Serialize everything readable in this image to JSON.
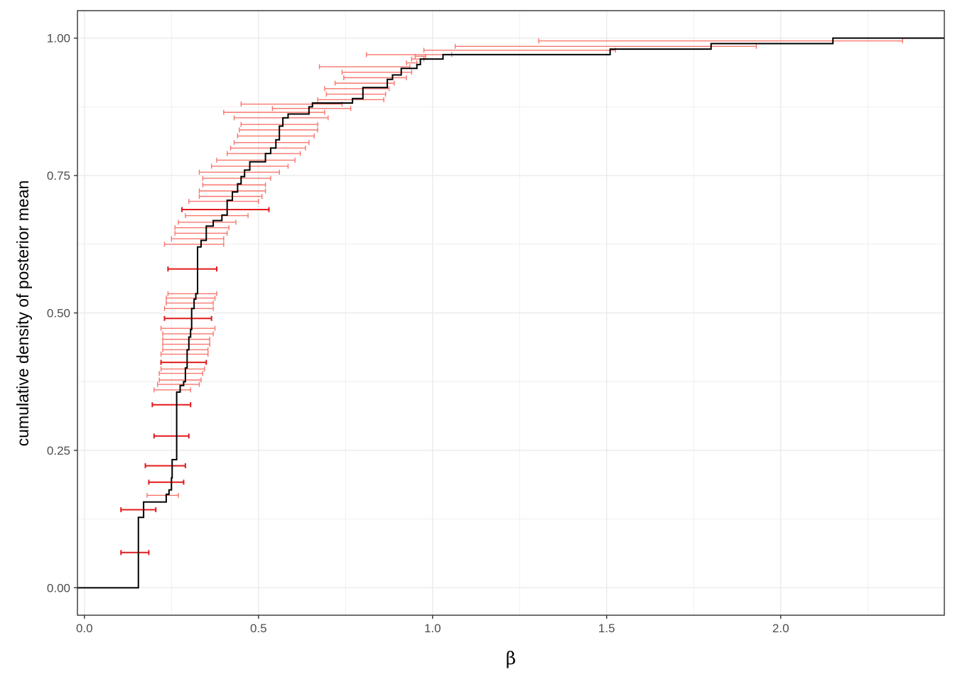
{
  "chart_data": {
    "type": "step",
    "xlabel": "β",
    "ylabel": "cumulative density of posterior mean",
    "xlim": [
      -0.02,
      2.47
    ],
    "ylim": [
      -0.05,
      1.05
    ],
    "x_ticks": [
      0.0,
      0.5,
      1.0,
      1.5,
      2.0
    ],
    "x_tick_labels": [
      "0.0",
      "0.5",
      "1.0",
      "1.5",
      "2.0"
    ],
    "y_ticks": [
      0.0,
      0.25,
      0.5,
      0.75,
      1.0
    ],
    "y_tick_labels": [
      "0.00",
      "0.25",
      "0.50",
      "0.75",
      "1.00"
    ],
    "grid": true,
    "colors": {
      "ecdf": "#000000",
      "interval_light": "#f8766d",
      "interval_dark": "#e41a1c",
      "grid": "#ebebeb",
      "panel_border": "#333333"
    },
    "ecdf_steps": [
      {
        "x": 0.155,
        "y": 0.128
      },
      {
        "x": 0.17,
        "y": 0.156
      },
      {
        "x": 0.235,
        "y": 0.17
      },
      {
        "x": 0.243,
        "y": 0.178
      },
      {
        "x": 0.25,
        "y": 0.2
      },
      {
        "x": 0.252,
        "y": 0.233
      },
      {
        "x": 0.265,
        "y": 0.356
      },
      {
        "x": 0.275,
        "y": 0.368
      },
      {
        "x": 0.285,
        "y": 0.375
      },
      {
        "x": 0.29,
        "y": 0.4
      },
      {
        "x": 0.295,
        "y": 0.433
      },
      {
        "x": 0.3,
        "y": 0.456
      },
      {
        "x": 0.305,
        "y": 0.47
      },
      {
        "x": 0.308,
        "y": 0.508
      },
      {
        "x": 0.315,
        "y": 0.525
      },
      {
        "x": 0.32,
        "y": 0.535
      },
      {
        "x": 0.325,
        "y": 0.62
      },
      {
        "x": 0.335,
        "y": 0.632
      },
      {
        "x": 0.35,
        "y": 0.658
      },
      {
        "x": 0.37,
        "y": 0.668
      },
      {
        "x": 0.395,
        "y": 0.678
      },
      {
        "x": 0.41,
        "y": 0.705
      },
      {
        "x": 0.425,
        "y": 0.72
      },
      {
        "x": 0.44,
        "y": 0.735
      },
      {
        "x": 0.45,
        "y": 0.748
      },
      {
        "x": 0.46,
        "y": 0.76
      },
      {
        "x": 0.475,
        "y": 0.775
      },
      {
        "x": 0.52,
        "y": 0.79
      },
      {
        "x": 0.535,
        "y": 0.8
      },
      {
        "x": 0.55,
        "y": 0.815
      },
      {
        "x": 0.56,
        "y": 0.84
      },
      {
        "x": 0.57,
        "y": 0.855
      },
      {
        "x": 0.585,
        "y": 0.862
      },
      {
        "x": 0.645,
        "y": 0.875
      },
      {
        "x": 0.655,
        "y": 0.882
      },
      {
        "x": 0.77,
        "y": 0.89
      },
      {
        "x": 0.8,
        "y": 0.91
      },
      {
        "x": 0.87,
        "y": 0.925
      },
      {
        "x": 0.885,
        "y": 0.933
      },
      {
        "x": 0.91,
        "y": 0.945
      },
      {
        "x": 0.955,
        "y": 0.952
      },
      {
        "x": 0.965,
        "y": 0.962
      },
      {
        "x": 1.03,
        "y": 0.97
      },
      {
        "x": 1.51,
        "y": 0.98
      },
      {
        "x": 1.8,
        "y": 0.99
      },
      {
        "x": 2.15,
        "y": 1.0
      }
    ],
    "intervals": [
      {
        "y": 0.064,
        "lo": 0.105,
        "hi": 0.185,
        "dark": true
      },
      {
        "y": 0.142,
        "lo": 0.105,
        "hi": 0.205,
        "dark": true
      },
      {
        "y": 0.168,
        "lo": 0.18,
        "hi": 0.27,
        "dark": false
      },
      {
        "y": 0.192,
        "lo": 0.185,
        "hi": 0.285,
        "dark": true
      },
      {
        "y": 0.222,
        "lo": 0.175,
        "hi": 0.29,
        "dark": true
      },
      {
        "y": 0.276,
        "lo": 0.2,
        "hi": 0.3,
        "dark": true
      },
      {
        "y": 0.333,
        "lo": 0.195,
        "hi": 0.305,
        "dark": true
      },
      {
        "y": 0.36,
        "lo": 0.2,
        "hi": 0.305,
        "dark": false
      },
      {
        "y": 0.37,
        "lo": 0.21,
        "hi": 0.33,
        "dark": false
      },
      {
        "y": 0.378,
        "lo": 0.215,
        "hi": 0.335,
        "dark": false
      },
      {
        "y": 0.39,
        "lo": 0.215,
        "hi": 0.34,
        "dark": false
      },
      {
        "y": 0.398,
        "lo": 0.22,
        "hi": 0.345,
        "dark": false
      },
      {
        "y": 0.41,
        "lo": 0.22,
        "hi": 0.35,
        "dark": true
      },
      {
        "y": 0.425,
        "lo": 0.22,
        "hi": 0.355,
        "dark": false
      },
      {
        "y": 0.433,
        "lo": 0.225,
        "hi": 0.355,
        "dark": false
      },
      {
        "y": 0.443,
        "lo": 0.225,
        "hi": 0.36,
        "dark": false
      },
      {
        "y": 0.452,
        "lo": 0.225,
        "hi": 0.36,
        "dark": false
      },
      {
        "y": 0.462,
        "lo": 0.225,
        "hi": 0.37,
        "dark": false
      },
      {
        "y": 0.472,
        "lo": 0.22,
        "hi": 0.375,
        "dark": false
      },
      {
        "y": 0.49,
        "lo": 0.23,
        "hi": 0.365,
        "dark": true
      },
      {
        "y": 0.508,
        "lo": 0.23,
        "hi": 0.37,
        "dark": false
      },
      {
        "y": 0.518,
        "lo": 0.235,
        "hi": 0.37,
        "dark": false
      },
      {
        "y": 0.527,
        "lo": 0.235,
        "hi": 0.375,
        "dark": false
      },
      {
        "y": 0.535,
        "lo": 0.24,
        "hi": 0.38,
        "dark": false
      },
      {
        "y": 0.58,
        "lo": 0.24,
        "hi": 0.38,
        "dark": true
      },
      {
        "y": 0.625,
        "lo": 0.23,
        "hi": 0.4,
        "dark": false
      },
      {
        "y": 0.635,
        "lo": 0.25,
        "hi": 0.4,
        "dark": false
      },
      {
        "y": 0.645,
        "lo": 0.26,
        "hi": 0.41,
        "dark": false
      },
      {
        "y": 0.655,
        "lo": 0.26,
        "hi": 0.415,
        "dark": false
      },
      {
        "y": 0.665,
        "lo": 0.27,
        "hi": 0.435,
        "dark": false
      },
      {
        "y": 0.677,
        "lo": 0.29,
        "hi": 0.47,
        "dark": false
      },
      {
        "y": 0.688,
        "lo": 0.28,
        "hi": 0.53,
        "dark": true
      },
      {
        "y": 0.703,
        "lo": 0.3,
        "hi": 0.5,
        "dark": false
      },
      {
        "y": 0.712,
        "lo": 0.33,
        "hi": 0.51,
        "dark": false
      },
      {
        "y": 0.722,
        "lo": 0.33,
        "hi": 0.52,
        "dark": false
      },
      {
        "y": 0.733,
        "lo": 0.34,
        "hi": 0.52,
        "dark": false
      },
      {
        "y": 0.745,
        "lo": 0.34,
        "hi": 0.535,
        "dark": false
      },
      {
        "y": 0.756,
        "lo": 0.33,
        "hi": 0.56,
        "dark": false
      },
      {
        "y": 0.767,
        "lo": 0.365,
        "hi": 0.585,
        "dark": false
      },
      {
        "y": 0.778,
        "lo": 0.38,
        "hi": 0.605,
        "dark": false
      },
      {
        "y": 0.79,
        "lo": 0.41,
        "hi": 0.62,
        "dark": false
      },
      {
        "y": 0.8,
        "lo": 0.42,
        "hi": 0.635,
        "dark": false
      },
      {
        "y": 0.81,
        "lo": 0.43,
        "hi": 0.645,
        "dark": false
      },
      {
        "y": 0.822,
        "lo": 0.44,
        "hi": 0.66,
        "dark": false
      },
      {
        "y": 0.833,
        "lo": 0.445,
        "hi": 0.67,
        "dark": false
      },
      {
        "y": 0.843,
        "lo": 0.45,
        "hi": 0.67,
        "dark": false
      },
      {
        "y": 0.855,
        "lo": 0.43,
        "hi": 0.7,
        "dark": false
      },
      {
        "y": 0.865,
        "lo": 0.4,
        "hi": 0.69,
        "dark": false
      },
      {
        "y": 0.872,
        "lo": 0.54,
        "hi": 0.765,
        "dark": false
      },
      {
        "y": 0.88,
        "lo": 0.45,
        "hi": 0.74,
        "dark": false
      },
      {
        "y": 0.888,
        "lo": 0.67,
        "hi": 0.86,
        "dark": false
      },
      {
        "y": 0.898,
        "lo": 0.695,
        "hi": 0.865,
        "dark": false
      },
      {
        "y": 0.908,
        "lo": 0.69,
        "hi": 0.875,
        "dark": false
      },
      {
        "y": 0.918,
        "lo": 0.72,
        "hi": 0.89,
        "dark": false
      },
      {
        "y": 0.928,
        "lo": 0.745,
        "hi": 0.925,
        "dark": false
      },
      {
        "y": 0.938,
        "lo": 0.74,
        "hi": 0.94,
        "dark": false
      },
      {
        "y": 0.948,
        "lo": 0.675,
        "hi": 0.935,
        "dark": false
      },
      {
        "y": 0.955,
        "lo": 0.925,
        "hi": 0.955,
        "dark": false
      },
      {
        "y": 0.962,
        "lo": 0.94,
        "hi": 0.975,
        "dark": false
      },
      {
        "y": 0.967,
        "lo": 0.95,
        "hi": 0.98,
        "dark": false
      },
      {
        "y": 0.97,
        "lo": 0.81,
        "hi": 1.055,
        "dark": false
      },
      {
        "y": 0.978,
        "lo": 0.975,
        "hi": 1.525,
        "dark": false
      },
      {
        "y": 0.985,
        "lo": 1.065,
        "hi": 1.93,
        "dark": false
      },
      {
        "y": 0.995,
        "lo": 1.305,
        "hi": 2.35,
        "dark": false
      }
    ]
  }
}
